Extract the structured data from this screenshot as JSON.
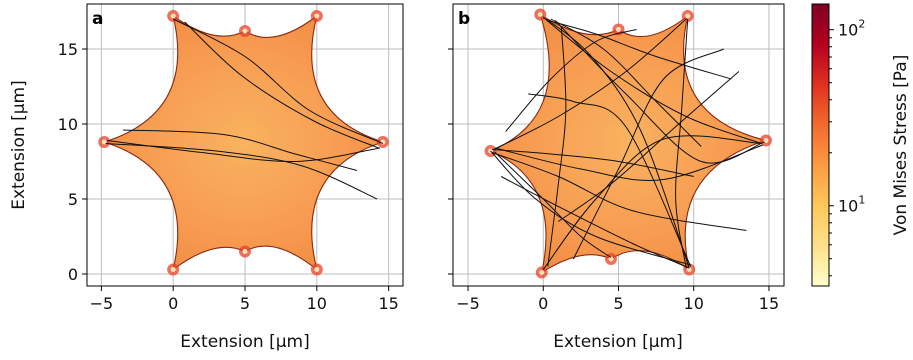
{
  "chart_data": [
    {
      "type": "heatmap",
      "panel_label": "a",
      "xlabel": "Extension [µm]",
      "ylabel": "Extension [µm]",
      "xlim": [
        -6,
        16
      ],
      "ylim": [
        -0.8,
        18
      ],
      "xticks": [
        -5,
        0,
        5,
        10,
        15
      ],
      "xtick_labels": [
        "−5",
        "0",
        "5",
        "10",
        "15"
      ],
      "yticks": [
        0,
        5,
        10,
        15
      ],
      "ytick_labels": [
        "0",
        "5",
        "10",
        "15"
      ],
      "grid": true,
      "cell_outline": [
        [
          0,
          17.2
        ],
        [
          5,
          16.2
        ],
        [
          10,
          17.2
        ],
        [
          14.6,
          8.8
        ],
        [
          10,
          0.3
        ],
        [
          5,
          1.5
        ],
        [
          0,
          0.3
        ],
        [
          -4.8,
          8.8
        ]
      ],
      "cell_concavity": [
        0.8,
        0.9,
        2.3,
        2.3,
        0.9,
        0.8,
        2.3,
        2.3
      ],
      "fibers": [
        {
          "x": [
            0,
            5,
            9.5,
            14.6
          ],
          "y": [
            17,
            14.5,
            10.9,
            8.7
          ]
        },
        {
          "x": [
            0.8,
            4.8,
            9.8,
            14.3
          ],
          "y": [
            16.8,
            13.2,
            10.2,
            8.4
          ]
        },
        {
          "x": [
            -4.6,
            2,
            8.5,
            14.4
          ],
          "y": [
            8.9,
            8.1,
            7.5,
            8.4
          ]
        },
        {
          "x": [
            -4.7,
            3,
            9,
            14.2
          ],
          "y": [
            8.7,
            8.2,
            7.2,
            5.0
          ]
        },
        {
          "x": [
            -3.5,
            3.5,
            8.5,
            12.8
          ],
          "y": [
            9.6,
            9.3,
            8.0,
            6.9
          ]
        }
      ]
    },
    {
      "type": "heatmap",
      "panel_label": "b",
      "xlabel": "Extension [µm]",
      "xlim": [
        -6,
        16
      ],
      "ylim": [
        -0.8,
        18
      ],
      "xticks": [
        -5,
        0,
        5,
        10,
        15
      ],
      "xtick_labels": [
        "−5",
        "0",
        "5",
        "10",
        "15"
      ],
      "yticks": [
        0,
        5,
        10,
        15
      ],
      "grid": true,
      "cell_outline": [
        [
          -0.2,
          17.3
        ],
        [
          5,
          16.3
        ],
        [
          9.6,
          17.2
        ],
        [
          14.8,
          8.9
        ],
        [
          9.7,
          0.3
        ],
        [
          4.5,
          1.0
        ],
        [
          -0.1,
          0.1
        ],
        [
          -3.5,
          8.2
        ]
      ],
      "cell_concavity": [
        0.8,
        0.9,
        2.4,
        2.3,
        0.9,
        0.7,
        1.8,
        2.2
      ],
      "fibers": [
        {
          "x": [
            0,
            4.5,
            9.5,
            14.5
          ],
          "y": [
            17.1,
            13.5,
            10.5,
            8.7
          ]
        },
        {
          "x": [
            0.2,
            3.2,
            6.5,
            9.7
          ],
          "y": [
            17,
            14.5,
            9.5,
            0.4
          ]
        },
        {
          "x": [
            0.8,
            5.5,
            10.5,
            14.7
          ],
          "y": [
            16.9,
            12,
            7.5,
            8.8
          ]
        },
        {
          "x": [
            -3.5,
            -0.5,
            3.5,
            9.8
          ],
          "y": [
            8.2,
            5,
            2.5,
            0.6
          ]
        },
        {
          "x": [
            -3.3,
            1,
            5.5,
            9.5
          ],
          "y": [
            8.3,
            10.5,
            13.5,
            17
          ]
        },
        {
          "x": [
            -3.4,
            1,
            6,
            13.5
          ],
          "y": [
            8.1,
            6.5,
            4.2,
            2.9
          ]
        },
        {
          "x": [
            -3.2,
            2.5,
            8,
            14.6
          ],
          "y": [
            8.4,
            7,
            6.3,
            8.6
          ]
        },
        {
          "x": [
            -2.5,
            0.5,
            3.5,
            6.2
          ],
          "y": [
            9.5,
            13,
            15.5,
            16.3
          ]
        },
        {
          "x": [
            -1,
            2,
            5.5,
            9.8
          ],
          "y": [
            12,
            11.5,
            9.8,
            0.5
          ]
        },
        {
          "x": [
            0.5,
            4,
            7.5,
            10.5
          ],
          "y": [
            17,
            15,
            11.5,
            8.5
          ]
        },
        {
          "x": [
            0,
            3.5,
            8,
            14.5
          ],
          "y": [
            0.3,
            5,
            9,
            8.7
          ]
        },
        {
          "x": [
            0.3,
            1,
            1.5,
            1.2
          ],
          "y": [
            0.5,
            6,
            11,
            16.5
          ]
        },
        {
          "x": [
            2,
            5,
            8,
            12
          ],
          "y": [
            1,
            7,
            13,
            15
          ]
        },
        {
          "x": [
            9.6,
            9.2,
            8.8,
            9.5
          ],
          "y": [
            17,
            11,
            5,
            0.4
          ]
        },
        {
          "x": [
            -3.2,
            0,
            2.5,
            4.5
          ],
          "y": [
            8.1,
            5,
            2.5,
            1.1
          ]
        },
        {
          "x": [
            0.3,
            3.5,
            7.5,
            12.5
          ],
          "y": [
            16.9,
            16,
            14.5,
            13
          ]
        },
        {
          "x": [
            -2.8,
            1,
            6,
            9.7
          ],
          "y": [
            6.5,
            4.5,
            2,
            0.4
          ]
        },
        {
          "x": [
            1,
            4.5,
            9,
            13
          ],
          "y": [
            3.5,
            6,
            10,
            13.5
          ]
        },
        {
          "x": [
            -3.4,
            0.5,
            5,
            10
          ],
          "y": [
            8.3,
            8,
            7.5,
            6.5
          ]
        }
      ]
    }
  ],
  "colorbar": {
    "label": "Von Mises Stress [Pa]",
    "scale": "log",
    "range": [
      3.5,
      140
    ],
    "tick_labels": [
      {
        "value": 10,
        "base": "10",
        "exponent": "1"
      },
      {
        "value": 100,
        "base": "10",
        "exponent": "2"
      }
    ],
    "colors": [
      "#ffffcc",
      "#fee08a",
      "#fdc75a",
      "#fd9b43",
      "#f26b2e",
      "#e0311f",
      "#b4001f",
      "#800026"
    ]
  },
  "colors": {
    "cell_base": "#f79a50",
    "cell_center": "#f9b35f",
    "cell_edge": "#f08a3f",
    "corner": "#e8402a",
    "fiber": "#111111",
    "grid": "#bdbdbd"
  }
}
